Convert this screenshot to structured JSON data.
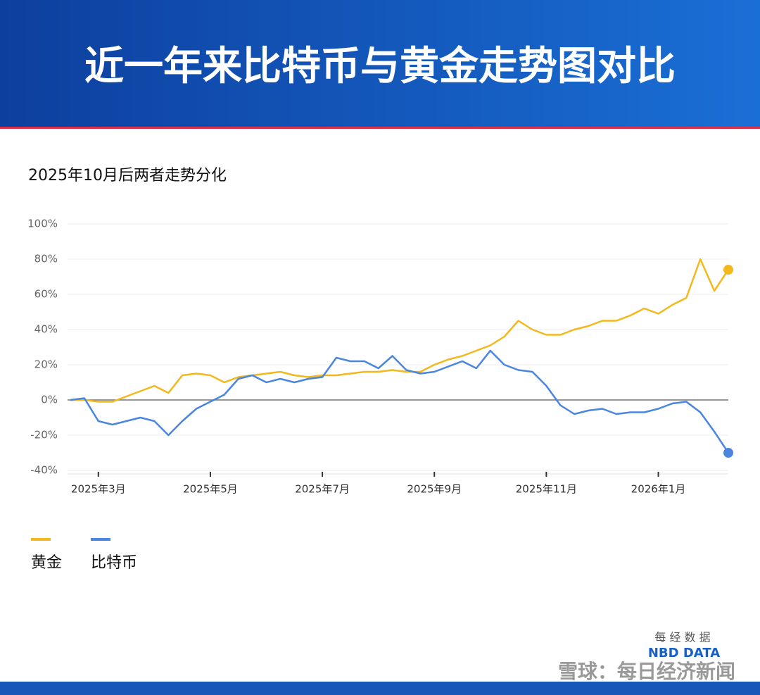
{
  "chart_data": {
    "type": "line",
    "title": "近一年来比特币与黄金走势图对比",
    "subtitle": "2025年10月后两者走势分化",
    "categories": [
      null,
      null,
      "2025年3月",
      null,
      null,
      null,
      null,
      null,
      null,
      null,
      "2025年5月",
      null,
      null,
      null,
      null,
      null,
      null,
      null,
      "2025年7月",
      null,
      null,
      null,
      null,
      null,
      null,
      null,
      "2025年9月",
      null,
      null,
      null,
      null,
      null,
      null,
      null,
      "2025年11月",
      null,
      null,
      null,
      null,
      null,
      null,
      null,
      "2026年1月",
      null,
      null,
      null,
      null,
      null
    ],
    "series": [
      {
        "name": "黄金",
        "color": "#f2b81c",
        "values": [
          0,
          0,
          -1,
          -1,
          2,
          5,
          8,
          4,
          14,
          15,
          14,
          10,
          13,
          14,
          15,
          16,
          14,
          13,
          14,
          14,
          15,
          16,
          16,
          17,
          16,
          16,
          20,
          23,
          25,
          28,
          31,
          36,
          45,
          40,
          37,
          37,
          40,
          42,
          45,
          45,
          48,
          52,
          49,
          54,
          58,
          80,
          62,
          74
        ]
      },
      {
        "name": "比特币",
        "color": "#4a86e0",
        "values": [
          0,
          1,
          -12,
          -14,
          -12,
          -10,
          -12,
          -20,
          -12,
          -5,
          -1,
          3,
          12,
          14,
          10,
          12,
          10,
          12,
          13,
          24,
          22,
          22,
          18,
          25,
          17,
          15,
          16,
          19,
          22,
          18,
          28,
          20,
          17,
          16,
          8,
          -3,
          -8,
          -6,
          -5,
          -8,
          -7,
          -7,
          -5,
          -2,
          -1,
          -7,
          -18,
          -30
        ]
      }
    ],
    "ylim": [
      -40,
      100
    ],
    "yticks": [
      {
        "value": -40,
        "label": "-40%"
      },
      {
        "value": -20,
        "label": "-20%"
      },
      {
        "value": 0,
        "label": "0%"
      },
      {
        "value": 20,
        "label": "20%"
      },
      {
        "value": 40,
        "label": "40%"
      },
      {
        "value": 60,
        "label": "60%"
      },
      {
        "value": 80,
        "label": "80%"
      },
      {
        "value": 100,
        "label": "100%"
      }
    ],
    "grid": true,
    "source_cn": "每 经 数 据",
    "source_en": "NBD DATA",
    "credit": "雪球：每日经济新闻"
  }
}
